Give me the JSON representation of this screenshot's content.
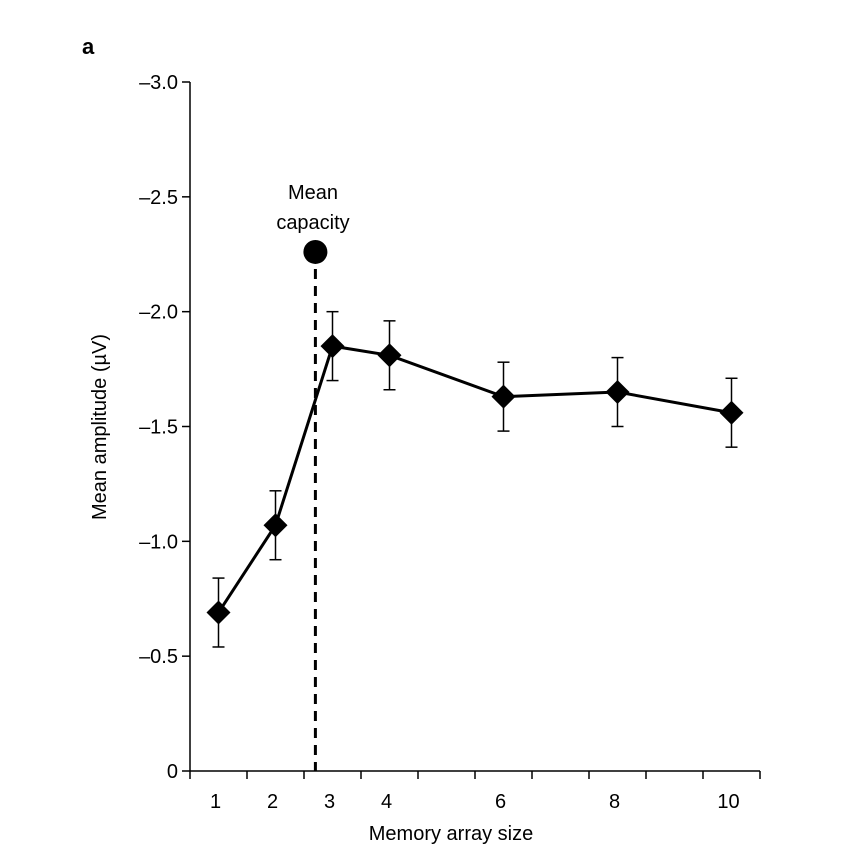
{
  "chart_data": {
    "type": "line",
    "panel_label": "a",
    "xlabel": "Memory array size",
    "ylabel": "Mean amplitude (µV)",
    "x": [
      1,
      2,
      3,
      4,
      6,
      8,
      10
    ],
    "x_tick_labels": [
      "1",
      "2",
      "3",
      "4",
      "6",
      "8",
      "10"
    ],
    "xlim": [
      0.5,
      10.5
    ],
    "ylim": [
      0,
      -3.0
    ],
    "y_ticks": [
      0,
      -0.5,
      -1.0,
      -1.5,
      -2.0,
      -2.5,
      -3.0
    ],
    "y_tick_labels": [
      "0",
      "–0.5",
      "–1.0",
      "–1.5",
      "–2.0",
      "–2.5",
      "–3.0"
    ],
    "series": [
      {
        "name": "Mean amplitude",
        "values": [
          -0.69,
          -1.07,
          -1.85,
          -1.81,
          -1.63,
          -1.65,
          -1.56
        ],
        "error": [
          0.15,
          0.15,
          0.15,
          0.15,
          0.15,
          0.15,
          0.15
        ],
        "marker": "diamond"
      }
    ],
    "annotation": {
      "text_line1": "Mean",
      "text_line2": "capacity",
      "x": 2.7,
      "y": -2.26
    },
    "grid": false
  }
}
